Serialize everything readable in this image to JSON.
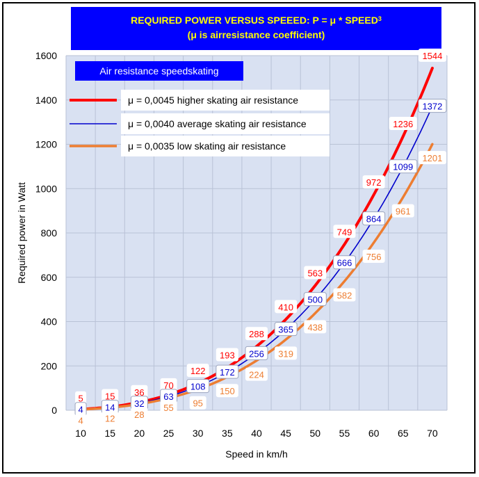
{
  "chart_data": {
    "type": "line",
    "title_line1": "REQUIRED POWER VERSUS SPEEED: P = μ * SPEED",
    "title_superscript": "3",
    "title_line2": "(μ is airresistance coefficient)",
    "legend_title": "Air resistance speedskating",
    "xlabel": "Speed in km/h",
    "ylabel": "Required power in Watt",
    "x": [
      10,
      15,
      20,
      25,
      30,
      35,
      40,
      45,
      50,
      55,
      60,
      65,
      70
    ],
    "xlim": [
      10,
      70
    ],
    "ylim": [
      0,
      1600
    ],
    "yticks": [
      0,
      200,
      400,
      600,
      800,
      1000,
      1200,
      1400,
      1600
    ],
    "grid": true,
    "legend_position": "top-left",
    "colors": {
      "plot_background": "#d9e1f2",
      "grid": "#b9c2d6",
      "title_bg": "#0000ff",
      "title_text": "#ffff00"
    },
    "series": [
      {
        "name": "μ = 0,0045 higher skating air resistance",
        "color": "#ff0000",
        "labels": [
          "5",
          "15",
          "36",
          "70",
          "122",
          "193",
          "288",
          "410",
          "563",
          "749",
          "972",
          "1236",
          "1544"
        ]
      },
      {
        "name": "μ = 0,0040 average skating air resistance",
        "color": "#0000cc",
        "labels": [
          "4",
          "14",
          "32",
          "63",
          "108",
          "172",
          "256",
          "365",
          "500",
          "666",
          "864",
          "1099",
          "1372"
        ]
      },
      {
        "name": "μ = 0,0035 low skating air resistance",
        "color": "#ed7d31",
        "labels": [
          "4",
          "12",
          "28",
          "55",
          "95",
          "150",
          "224",
          "319",
          "438",
          "582",
          "756",
          "961",
          "1201"
        ]
      }
    ]
  }
}
